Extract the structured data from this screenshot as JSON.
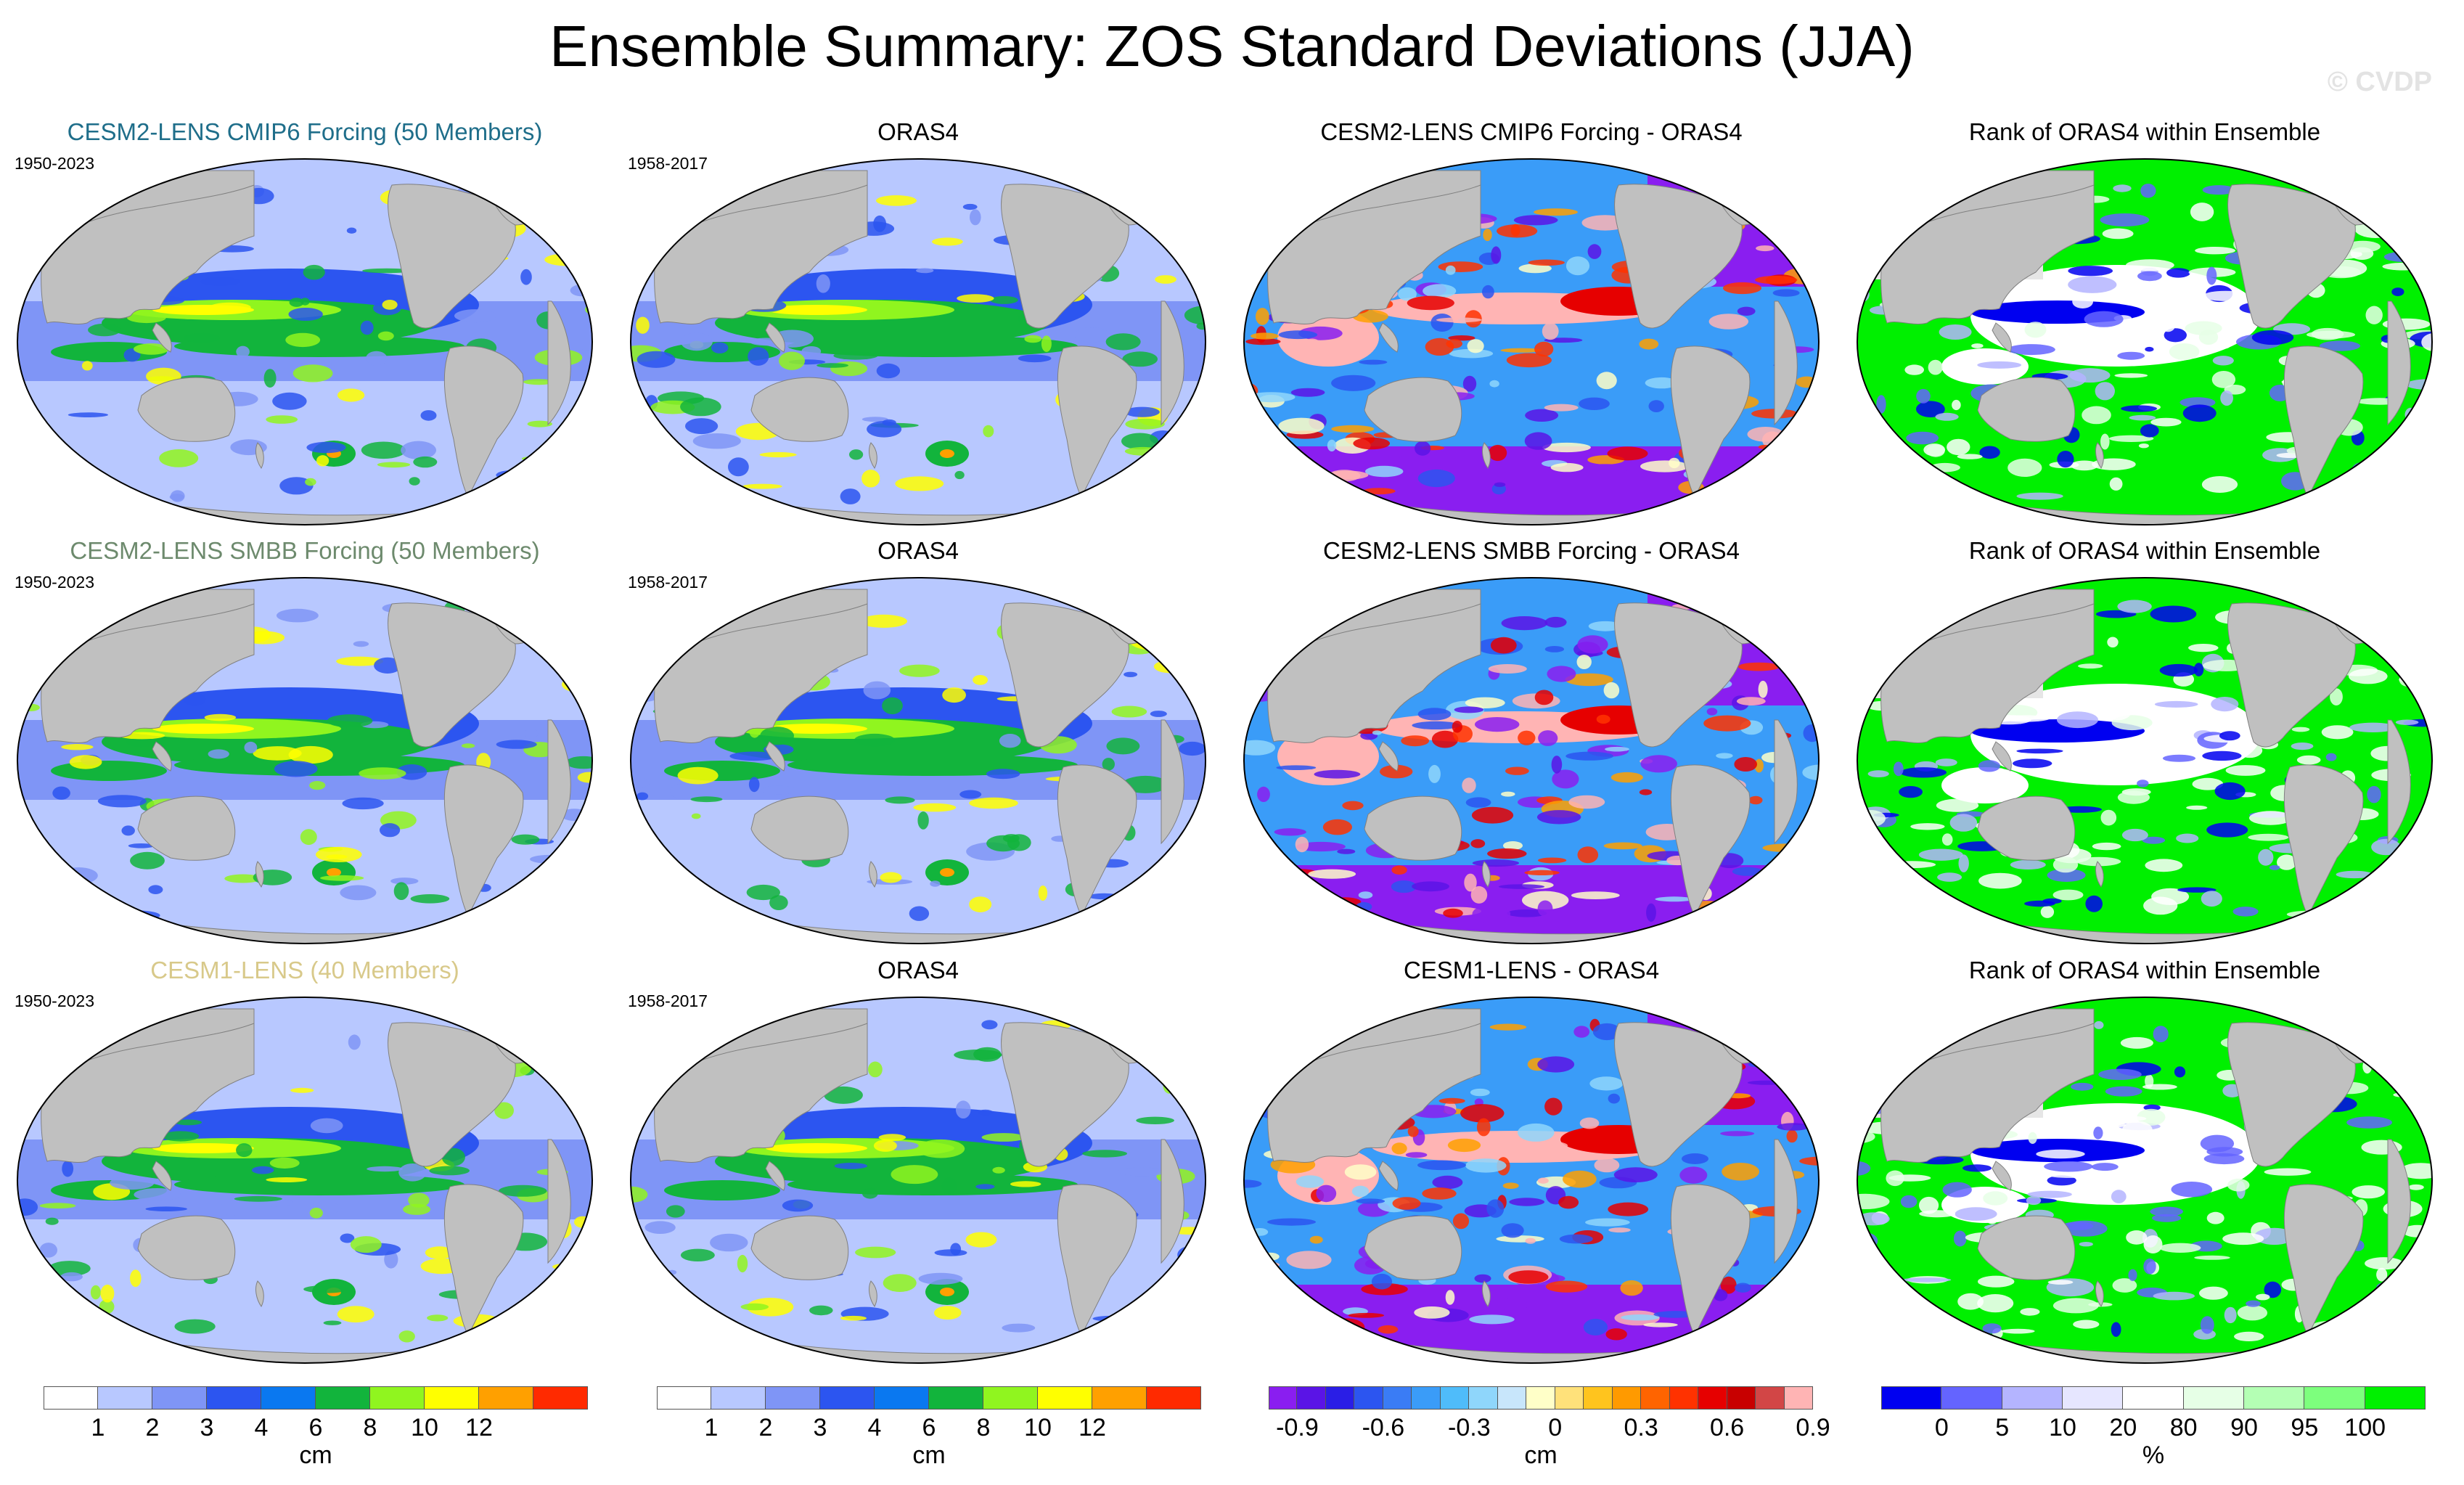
{
  "figure": {
    "title": "Ensemble Summary: ZOS Standard Deviations (JJA)",
    "copyright": "© CVDP"
  },
  "rows": [
    {
      "ensemble_title": "CESM2-LENS CMIP6 Forcing (50 Members)",
      "ensemble_color": "#1f6e8a",
      "ensemble_period": "1950-2023",
      "obs_title": "ORAS4",
      "obs_period": "1958-2017",
      "diff_title": "CESM2-LENS CMIP6 Forcing - ORAS4",
      "rank_title": "Rank of ORAS4 within Ensemble"
    },
    {
      "ensemble_title": "CESM2-LENS SMBB Forcing (50 Members)",
      "ensemble_color": "#6d8a6d",
      "ensemble_period": "1950-2023",
      "obs_title": "ORAS4",
      "obs_period": "1958-2017",
      "diff_title": "CESM2-LENS SMBB Forcing - ORAS4",
      "rank_title": "Rank of ORAS4 within Ensemble"
    },
    {
      "ensemble_title": "CESM1-LENS (40 Members)",
      "ensemble_color": "#d8c98a",
      "ensemble_period": "1950-2023",
      "obs_title": "ORAS4",
      "obs_period": "1958-2017",
      "diff_title": "CESM1-LENS - ORAS4",
      "rank_title": "Rank of ORAS4 within Ensemble"
    }
  ],
  "colorbars": {
    "stddev": {
      "unit": "cm",
      "colors": [
        "#ffffff",
        "#b8c8ff",
        "#7f95f6",
        "#2c55f0",
        "#0a78f0",
        "#12b43c",
        "#90f51f",
        "#ffff00",
        "#ffa000",
        "#ff2a00"
      ],
      "labels": [
        "1",
        "2",
        "3",
        "4",
        "6",
        "8",
        "10",
        "12"
      ]
    },
    "difference": {
      "unit": "cm",
      "colors": [
        "#8a1ef0",
        "#5a14e6",
        "#2a1ee6",
        "#2c55f0",
        "#3a7cf5",
        "#3a9cf8",
        "#4fbcfa",
        "#8fd6fb",
        "#c8e6fb",
        "#ffffc8",
        "#ffe17a",
        "#ffc41e",
        "#ff9a00",
        "#ff6400",
        "#ff3200",
        "#e60000",
        "#c80000",
        "#d24646",
        "#ffb4b4"
      ],
      "labels": [
        "-0.9",
        "-0.6",
        "-0.3",
        "0",
        "0.3",
        "0.6",
        "0.9"
      ]
    },
    "rank": {
      "unit": "%",
      "colors": [
        "#0000f0",
        "#6464ff",
        "#b4b4ff",
        "#e6e6ff",
        "#ffffff",
        "#e6ffe6",
        "#b4ffb4",
        "#7dff7d",
        "#00f000"
      ],
      "labels": [
        "0",
        "5",
        "10",
        "20",
        "80",
        "90",
        "95",
        "100"
      ]
    }
  }
}
